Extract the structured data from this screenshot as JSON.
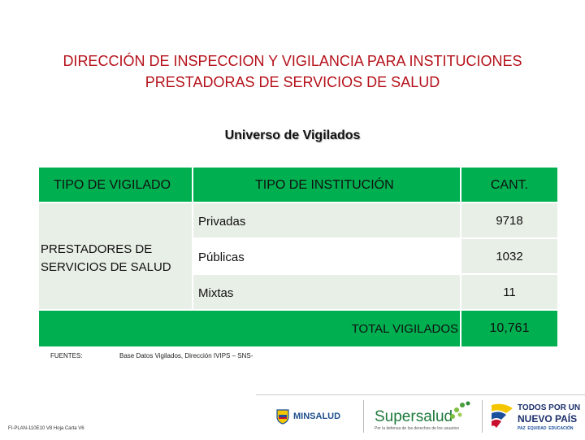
{
  "header": {
    "title_line1": "DIRECCIÓN DE INSPECCION Y VIGILANCIA PARA INSTITUCIONES",
    "title_line2": "PRESTADORAS DE SERVICIOS DE SALUD",
    "subtitle": "Universo de Vigilados"
  },
  "table": {
    "col_tipo_vigilado": "TIPO DE VIGILADO",
    "col_tipo_institucion": "TIPO DE INSTITUCIÓN",
    "col_cant": "CANT.",
    "vigilado_line1": "PRESTADORES DE",
    "vigilado_line2": "SERVICIOS DE SALUD",
    "rows": [
      {
        "tipo": "Privadas",
        "cant": "9718"
      },
      {
        "tipo": "Públicas",
        "cant": "1032"
      },
      {
        "tipo": "Mixtas",
        "cant": "11"
      }
    ],
    "total_label": "TOTAL VIGILADOS",
    "total_value": "10,761"
  },
  "sources": {
    "label": "FUENTES:",
    "text": "Base Datos Vigilados, Dirección IVIPS – SNS-"
  },
  "footer": {
    "code": "FI-PLAN-110E10 V8 Hoja Carta V6",
    "logo_minsalud": "MINSALUD",
    "logo_supersalud": "Supersalud",
    "logo_supersalud_tagline": "Por la defensa de los derechos de los usuarios",
    "logo_gov_line1": "TODOS POR UN",
    "logo_gov_line2": "NUEVO PAÍS",
    "logo_gov_line3": "PAZ  EQUIDAD  EDUCACIÓN"
  },
  "colors": {
    "title": "#b5121b",
    "table_green": "#00b050",
    "table_light": "#e8efe6"
  }
}
